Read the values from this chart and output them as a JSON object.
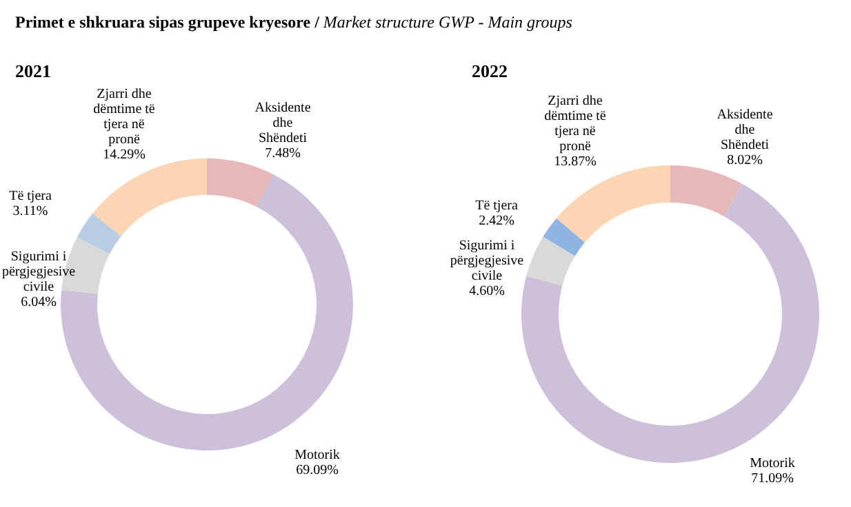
{
  "chart_data": [
    {
      "type": "donut",
      "title": "2021",
      "annotations": [
        "Primet e shkruara sipas grupeve kryesore / ",
        "Market structure GWP - Main groups"
      ],
      "categories": [
        "Aksidente dhe Shëndeti",
        "Motorik",
        "Sigurimi i përgjegjesive civile",
        "Të tjera",
        "Zjarri dhe dëmtime të tjera në pronë"
      ],
      "values": [
        7.48,
        69.09,
        6.04,
        3.11,
        14.29
      ],
      "value_labels": [
        "7.48%",
        "69.09%",
        "6.04%",
        "3.11%",
        "14.29%"
      ],
      "colors": [
        "#e6b8b7",
        "#ccc0da",
        "#d9d9d9",
        "#b8cce4",
        "#fcd5b4"
      ],
      "legend": false
    },
    {
      "type": "donut",
      "title": "2022",
      "categories": [
        "Aksidente dhe Shëndeti",
        "Motorik",
        "Sigurimi i përgjegjesive civile",
        "Të tjera",
        "Zjarri dhe dëmtime të tjera në pronë"
      ],
      "values": [
        8.02,
        71.09,
        4.6,
        2.42,
        13.87
      ],
      "value_labels": [
        "8.02%",
        "71.09%",
        "4.60%",
        "2.42%",
        "13.87%"
      ],
      "colors": [
        "#e6b8b7",
        "#ccc0da",
        "#d9d9d9",
        "#8db4e2",
        "#fcd5b4"
      ],
      "legend": false
    }
  ]
}
